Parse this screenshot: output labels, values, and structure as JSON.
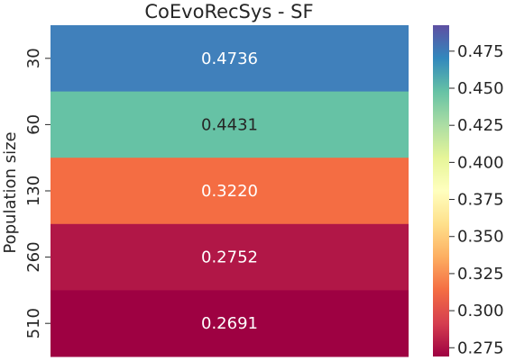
{
  "chart_data": {
    "type": "heatmap",
    "title": "CoEvoRecSys - SF",
    "xlabel": "",
    "ylabel": "Population size",
    "rows": [
      "30",
      "60",
      "130",
      "260",
      "510"
    ],
    "values": [
      0.4736,
      0.4431,
      0.322,
      0.2752,
      0.2691
    ],
    "value_labels": [
      "0.4736",
      "0.4431",
      "0.3220",
      "0.2752",
      "0.2691"
    ],
    "colormap": "Spectral",
    "colorbar": {
      "vmin": 0.2691,
      "vmax": 0.4925,
      "ticks": [
        0.275,
        0.3,
        0.325,
        0.35,
        0.375,
        0.4,
        0.425,
        0.45,
        0.475
      ],
      "tick_labels": [
        "0.275",
        "0.300",
        "0.325",
        "0.350",
        "0.375",
        "0.400",
        "0.425",
        "0.450",
        "0.475"
      ]
    },
    "cell_colors": [
      "#4080bb",
      "#66c2a5",
      "#f46d43",
      "#b11747",
      "#9e0142"
    ],
    "cell_text_colors": [
      "#ffffff",
      "#262626",
      "#ffffff",
      "#ffffff",
      "#ffffff"
    ]
  }
}
